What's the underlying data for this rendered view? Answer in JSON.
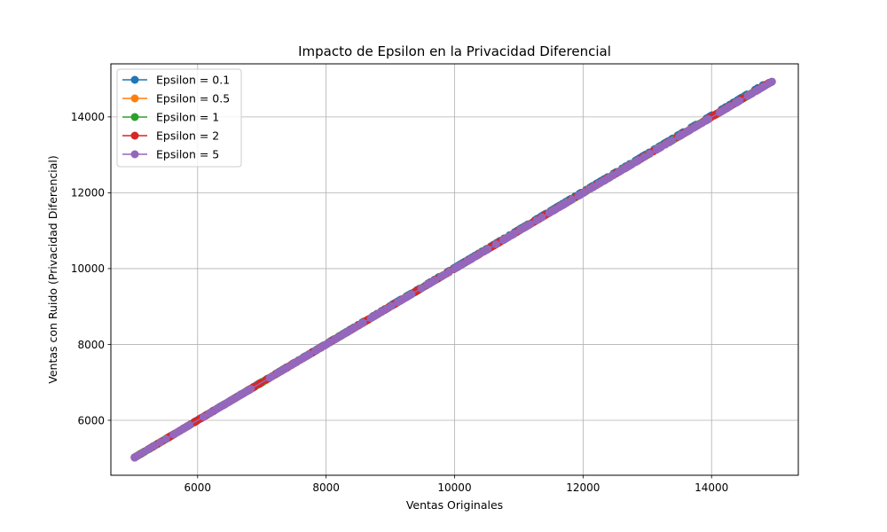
{
  "chart_data": {
    "type": "line",
    "title": "Impacto de Epsilon en la Privacidad Diferencial",
    "xlabel": "Ventas Originales",
    "ylabel": "Ventas con Ruido (Privacidad Diferencial)",
    "xlim": [
      4650,
      15350
    ],
    "ylim": [
      4550,
      15400
    ],
    "xticks": [
      6000,
      8000,
      10000,
      12000,
      14000
    ],
    "yticks": [
      6000,
      8000,
      10000,
      12000,
      14000
    ],
    "xtick_labels": [
      "6000",
      "8000",
      "10000",
      "12000",
      "14000"
    ],
    "ytick_labels": [
      "6000",
      "8000",
      "10000",
      "12000",
      "14000"
    ],
    "grid": true,
    "legend_position": "top-left",
    "series": [
      {
        "name": "Epsilon = 0.1",
        "color": "#1f77b4",
        "x": [
          5020,
          14800
        ],
        "y": [
          5020,
          14840
        ]
      },
      {
        "name": "Epsilon = 0.5",
        "color": "#ff7f0e",
        "x": [
          5020,
          14900
        ],
        "y": [
          5020,
          14900
        ]
      },
      {
        "name": "Epsilon = 1",
        "color": "#2ca02c",
        "x": [
          5020,
          14900
        ],
        "y": [
          5020,
          14900
        ]
      },
      {
        "name": "Epsilon = 2",
        "color": "#d62728",
        "x": [
          5020,
          14900
        ],
        "y": [
          5020,
          14900
        ]
      },
      {
        "name": "Epsilon = 5",
        "color": "#9467bd",
        "x": [
          5020,
          14940
        ],
        "y": [
          5020,
          14930
        ]
      }
    ]
  }
}
